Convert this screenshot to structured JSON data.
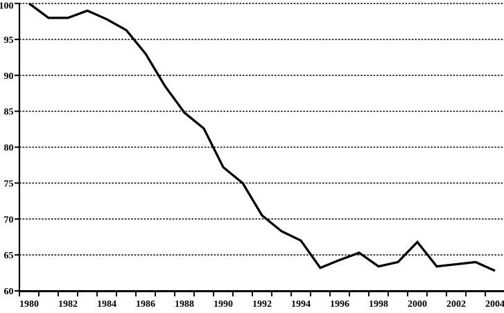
{
  "chart_data": {
    "type": "line",
    "title": "",
    "xlabel": "",
    "ylabel": "",
    "x": [
      1980,
      1981,
      1982,
      1983,
      1984,
      1985,
      1986,
      1987,
      1988,
      1989,
      1990,
      1991,
      1992,
      1993,
      1994,
      1995,
      1996,
      1997,
      1998,
      1999,
      2000,
      2001,
      2002,
      2003,
      2004
    ],
    "values": [
      100,
      98,
      98,
      99,
      97.8,
      96.3,
      93,
      88.5,
      84.8,
      82.6,
      77.2,
      75,
      70.5,
      68.3,
      67,
      63.2,
      64.3,
      65.3,
      63.4,
      64,
      66.8,
      63.4,
      63.7,
      64,
      62.8
    ],
    "ylim": [
      60,
      100
    ],
    "y_ticks": [
      60,
      65,
      70,
      75,
      80,
      85,
      90,
      95,
      100
    ],
    "x_tick_labels": [
      "1980",
      "1982",
      "1984",
      "1986",
      "1988",
      "1990",
      "1992",
      "1994",
      "1996",
      "1998",
      "2000",
      "2002",
      "2004"
    ],
    "x_label_step": 2,
    "grid": "horizontal-dotted",
    "legend": "none",
    "line_color": "#000000",
    "grid_color": "#000000",
    "axis_color": "#000000",
    "background_color": "#ffffff"
  }
}
